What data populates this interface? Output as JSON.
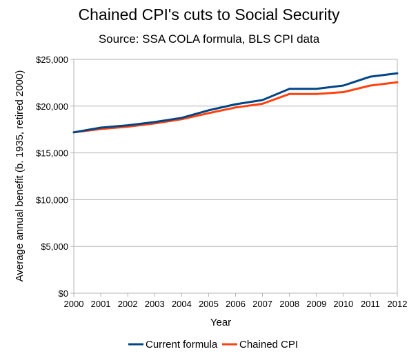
{
  "chart_data": {
    "type": "line",
    "title": "Chained CPI's cuts to Social Security",
    "subtitle": "Source: SSA COLA formula, BLS CPI data",
    "xlabel": "Year",
    "ylabel": "Average annual benefit (b. 1935, retired 2000)",
    "x": [
      2000,
      2001,
      2002,
      2003,
      2004,
      2005,
      2006,
      2007,
      2008,
      2009,
      2010,
      2011,
      2012
    ],
    "x_tick_labels": [
      "2000",
      "2001",
      "2002",
      "2003",
      "2004",
      "2005",
      "2006",
      "2007",
      "2008",
      "2009",
      "2010",
      "2011",
      "2012"
    ],
    "y_ticks": [
      0,
      5000,
      10000,
      15000,
      20000,
      25000
    ],
    "y_tick_labels": [
      "$0",
      "$5,000",
      "$10,000",
      "$15,000",
      "$20,000",
      "$25,000"
    ],
    "ylim": [
      0,
      25000
    ],
    "xlim": [
      2000,
      2012
    ],
    "grid": "horizontal",
    "legend_position": "bottom",
    "series": [
      {
        "name": "Current formula",
        "color": "#004586",
        "values": [
          17200,
          17700,
          17950,
          18300,
          18750,
          19550,
          20200,
          20650,
          21850,
          21850,
          22200,
          23150,
          23500
        ]
      },
      {
        "name": "Chained CPI",
        "color": "#ff420e",
        "values": [
          17200,
          17550,
          17800,
          18150,
          18600,
          19250,
          19850,
          20250,
          21300,
          21300,
          21500,
          22200,
          22550
        ]
      }
    ]
  }
}
